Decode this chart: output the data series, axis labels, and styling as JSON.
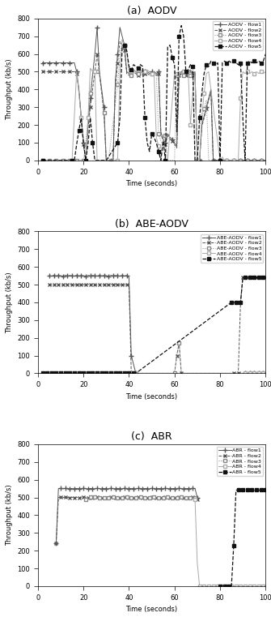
{
  "title_a": "(a)  AODV",
  "title_b": "(b)  ABE-AODV",
  "title_c": "(c)  ABR",
  "ylabel": "Throughput (kb/s)",
  "xlabel": "Time (seconds)",
  "ylim": [
    0,
    800
  ],
  "xlim": [
    0,
    100
  ],
  "yticks": [
    0,
    100,
    200,
    300,
    400,
    500,
    600,
    700,
    800
  ],
  "xticks": [
    0,
    20,
    40,
    60,
    80,
    100
  ],
  "legend_a": [
    "AODV - flow1",
    "AODV - flow2",
    "AODV - flow3",
    "AODV - flow4",
    "AODV - flow5"
  ],
  "legend_b": [
    "ABE-AODV - flow1",
    "ABE-AODV - flow2",
    "ABE-AODV - flow3",
    "ABE-AODV - flow4",
    "ABE-AODV - flow5"
  ],
  "legend_c": [
    "ABR - flow1",
    "ABR - flow2",
    "ABR - flow3",
    "ABR - flow4",
    "ABR - flow5"
  ],
  "aodv_flow1_t": [
    2,
    3,
    4,
    5,
    6,
    7,
    8,
    9,
    10,
    11,
    12,
    13,
    14,
    15,
    16,
    17,
    18,
    19,
    20,
    21,
    22,
    23,
    24,
    25,
    26,
    27,
    28,
    29,
    30,
    31,
    32,
    33,
    34,
    35,
    36,
    37,
    38,
    39,
    40,
    41,
    42,
    43,
    44,
    45,
    46,
    47,
    48,
    49,
    50,
    51,
    52,
    53,
    54,
    55,
    56,
    57,
    58,
    59,
    60,
    61,
    62,
    63,
    64,
    65,
    66,
    67,
    68,
    69,
    70,
    71,
    72,
    73,
    74,
    75,
    76,
    77,
    78,
    79,
    80,
    81,
    82,
    83,
    84,
    85,
    86,
    87,
    88,
    89,
    90,
    91,
    92,
    93,
    94,
    95,
    96,
    97,
    98,
    99,
    100
  ],
  "aodv_flow1_v": [
    550,
    550,
    550,
    550,
    550,
    550,
    550,
    550,
    550,
    550,
    550,
    550,
    550,
    550,
    550,
    500,
    400,
    250,
    100,
    0,
    200,
    350,
    480,
    600,
    750,
    500,
    400,
    300,
    0,
    0,
    0,
    0,
    450,
    600,
    750,
    700,
    650,
    500,
    490,
    500,
    510,
    500,
    490,
    500,
    510,
    500,
    490,
    500,
    500,
    500,
    490,
    500,
    160,
    120,
    100,
    150,
    130,
    120,
    100,
    80,
    490,
    500,
    510,
    490,
    500,
    510,
    490,
    500,
    0,
    0,
    200,
    250,
    300,
    350,
    400,
    0,
    0,
    0,
    0,
    0,
    0,
    0,
    0,
    0,
    0,
    0,
    0,
    0,
    0,
    0,
    0,
    0,
    0,
    0,
    0,
    0,
    0,
    0,
    0
  ],
  "aodv_flow2_t": [
    2,
    3,
    4,
    5,
    6,
    7,
    8,
    9,
    10,
    11,
    12,
    13,
    14,
    15,
    16,
    17,
    18,
    19,
    20,
    21,
    22,
    23,
    24,
    25,
    26,
    27,
    28,
    29,
    30,
    31,
    32,
    33,
    34,
    35,
    36,
    37,
    38,
    39,
    40,
    41,
    42,
    43,
    44,
    45,
    46,
    47,
    48,
    49,
    50,
    51,
    52,
    53,
    54,
    55,
    56,
    57,
    58,
    59,
    60,
    61,
    62,
    63,
    64,
    65,
    66,
    67,
    68,
    69,
    70,
    71,
    72,
    73,
    74,
    75,
    76,
    77,
    78,
    79,
    80,
    81,
    82,
    83,
    84,
    85,
    86,
    87,
    88,
    89,
    90,
    91,
    92,
    93,
    94,
    95,
    96,
    97,
    98,
    99,
    100
  ],
  "aodv_flow2_v": [
    500,
    500,
    500,
    500,
    500,
    500,
    500,
    500,
    500,
    500,
    500,
    500,
    500,
    500,
    500,
    490,
    390,
    240,
    90,
    0,
    180,
    300,
    400,
    500,
    600,
    490,
    380,
    270,
    0,
    0,
    0,
    0,
    410,
    550,
    670,
    650,
    620,
    490,
    480,
    490,
    500,
    490,
    480,
    490,
    500,
    490,
    480,
    490,
    490,
    490,
    480,
    490,
    150,
    110,
    90,
    140,
    120,
    110,
    90,
    70,
    480,
    490,
    500,
    480,
    490,
    500,
    480,
    490,
    0,
    0,
    190,
    240,
    290,
    340,
    390,
    0,
    0,
    0,
    0,
    0,
    0,
    0,
    0,
    0,
    0,
    0,
    0,
    0,
    0,
    0,
    0,
    0,
    0,
    0,
    0,
    0,
    0,
    0,
    0
  ],
  "aodv_flow3_t": [
    2,
    3,
    4,
    5,
    6,
    7,
    8,
    9,
    10,
    11,
    12,
    13,
    14,
    15,
    16,
    17,
    18,
    19,
    20,
    21,
    22,
    23,
    24,
    25,
    26,
    27,
    28,
    29,
    30,
    31,
    35,
    36,
    37,
    38,
    39,
    40,
    41,
    42,
    43,
    44,
    45,
    46,
    47,
    48,
    49,
    50,
    51,
    52,
    53,
    54,
    55,
    56,
    57,
    60,
    61,
    62,
    63,
    64,
    65,
    66,
    67,
    68,
    69,
    70,
    71,
    72,
    73,
    74,
    75,
    80,
    81,
    82,
    83,
    84,
    85,
    86,
    87,
    88,
    89,
    90,
    91,
    92,
    93,
    94,
    95,
    96,
    97,
    98,
    99,
    100
  ],
  "aodv_flow3_v": [
    0,
    0,
    0,
    0,
    0,
    0,
    0,
    0,
    0,
    0,
    0,
    0,
    0,
    0,
    0,
    0,
    0,
    0,
    0,
    100,
    230,
    380,
    490,
    500,
    500,
    490,
    380,
    270,
    0,
    0,
    430,
    590,
    680,
    650,
    620,
    490,
    480,
    490,
    500,
    490,
    480,
    490,
    500,
    490,
    480,
    490,
    490,
    490,
    150,
    110,
    90,
    140,
    0,
    0,
    480,
    490,
    500,
    480,
    490,
    500,
    480,
    490,
    0,
    0,
    200,
    240,
    290,
    340,
    0,
    0,
    0,
    0,
    0,
    0,
    0,
    0,
    0,
    0,
    0,
    0,
    0,
    0,
    0,
    0,
    0,
    0,
    0,
    0,
    0,
    0
  ],
  "aodv_flow4_t": [
    2,
    5,
    10,
    15,
    17,
    18,
    19,
    20,
    21,
    22,
    23,
    24,
    25,
    26,
    30,
    35,
    36,
    37,
    38,
    39,
    40,
    41,
    42,
    43,
    44,
    45,
    46,
    47,
    48,
    49,
    50,
    51,
    52,
    53,
    54,
    55,
    56,
    57,
    60,
    61,
    62,
    63,
    64,
    65,
    66,
    67,
    68,
    69,
    70,
    71,
    72,
    73,
    74,
    75,
    80,
    81,
    82,
    83,
    84,
    85,
    86,
    87,
    88,
    89,
    90,
    91,
    92,
    93,
    94,
    95,
    96,
    97,
    98,
    99,
    100
  ],
  "aodv_flow4_v": [
    0,
    0,
    0,
    0,
    500,
    380,
    240,
    110,
    0,
    240,
    520,
    500,
    500,
    0,
    0,
    0,
    500,
    680,
    650,
    620,
    510,
    500,
    510,
    500,
    510,
    500,
    510,
    500,
    510,
    500,
    490,
    500,
    130,
    80,
    0,
    120,
    0,
    0,
    500,
    490,
    500,
    490,
    500,
    490,
    500,
    200,
    380,
    490,
    0,
    0,
    250,
    380,
    490,
    500,
    0,
    20,
    0,
    0,
    0,
    0,
    0,
    0,
    0,
    350,
    500,
    490,
    500,
    490,
    500,
    490,
    500,
    490,
    500,
    490,
    500
  ],
  "aodv_flow5_t": [
    2,
    5,
    10,
    15,
    16,
    17,
    18,
    19,
    20,
    21,
    22,
    23,
    24,
    25,
    30,
    35,
    36,
    37,
    38,
    39,
    40,
    41,
    42,
    43,
    44,
    45,
    46,
    47,
    48,
    49,
    50,
    51,
    52,
    53,
    54,
    55,
    56,
    57,
    58,
    59,
    60,
    61,
    62,
    63,
    64,
    65,
    66,
    67,
    68,
    69,
    70,
    71,
    72,
    73,
    74,
    75,
    76,
    77,
    78,
    79,
    80,
    81,
    82,
    83,
    84,
    85,
    86,
    87,
    88,
    89,
    90,
    91,
    92,
    93,
    94,
    95,
    96,
    97,
    98,
    99,
    100
  ],
  "aodv_flow5_v": [
    0,
    0,
    0,
    0,
    0,
    90,
    170,
    240,
    100,
    0,
    90,
    240,
    100,
    0,
    0,
    100,
    240,
    640,
    650,
    620,
    530,
    510,
    540,
    530,
    520,
    540,
    530,
    240,
    100,
    50,
    150,
    130,
    100,
    50,
    0,
    110,
    0,
    640,
    650,
    580,
    540,
    160,
    700,
    760,
    700,
    500,
    510,
    540,
    530,
    0,
    0,
    240,
    380,
    490,
    540,
    530,
    560,
    550,
    540,
    550,
    0,
    550,
    560,
    550,
    560,
    550,
    560,
    550,
    540,
    550,
    240,
    0,
    550,
    560,
    550,
    560,
    550,
    560,
    550,
    560,
    600
  ],
  "abe_flow1_t": [
    5,
    6,
    7,
    8,
    9,
    10,
    11,
    12,
    13,
    14,
    15,
    16,
    17,
    18,
    19,
    20,
    21,
    22,
    23,
    24,
    25,
    26,
    27,
    28,
    29,
    30,
    31,
    32,
    33,
    34,
    35,
    36,
    37,
    38,
    39,
    40,
    41,
    42,
    43,
    90,
    91,
    92,
    93,
    94,
    95,
    96,
    97,
    98,
    99,
    100
  ],
  "abe_flow1_v": [
    550,
    548,
    552,
    549,
    551,
    550,
    548,
    552,
    549,
    551,
    550,
    548,
    552,
    549,
    551,
    550,
    548,
    552,
    549,
    551,
    550,
    548,
    552,
    549,
    551,
    550,
    548,
    552,
    549,
    551,
    550,
    548,
    552,
    549,
    551,
    540,
    100,
    50,
    0,
    0,
    0,
    0,
    0,
    0,
    0,
    0,
    0,
    0,
    0,
    0
  ],
  "abe_flow2_t": [
    5,
    6,
    7,
    8,
    9,
    10,
    11,
    12,
    13,
    14,
    15,
    16,
    17,
    18,
    19,
    20,
    21,
    22,
    23,
    24,
    25,
    26,
    27,
    28,
    29,
    30,
    31,
    32,
    33,
    34,
    35,
    36,
    37,
    38,
    39,
    40,
    41,
    60,
    61,
    62,
    63,
    85,
    86,
    87,
    88,
    89,
    90,
    91,
    92,
    93,
    94,
    95,
    96,
    97,
    98,
    99,
    100
  ],
  "abe_flow2_v": [
    500,
    498,
    502,
    499,
    501,
    500,
    498,
    502,
    499,
    501,
    500,
    498,
    502,
    499,
    501,
    500,
    498,
    502,
    499,
    501,
    500,
    498,
    502,
    499,
    501,
    500,
    498,
    502,
    499,
    501,
    500,
    498,
    502,
    499,
    501,
    500,
    0,
    0,
    100,
    170,
    0,
    0,
    0,
    0,
    0,
    400,
    540,
    540,
    540,
    540,
    540,
    540,
    540,
    540,
    540,
    540,
    540
  ],
  "abe_flow3_t": [
    60,
    61,
    62,
    63
  ],
  "abe_flow3_v": [
    0,
    100,
    170,
    0
  ],
  "abe_flow4_t": [
    5,
    6,
    7,
    8,
    9,
    10,
    11,
    12,
    13,
    14,
    15,
    16,
    17,
    18,
    19,
    20,
    21,
    22,
    23,
    24,
    25,
    26,
    27,
    28,
    29,
    30,
    31,
    32,
    33,
    34,
    35,
    36,
    37,
    38,
    39,
    40,
    41,
    42,
    43,
    90,
    91,
    92,
    93,
    94,
    95,
    96,
    97,
    98,
    99,
    100
  ],
  "abe_flow4_v": [
    0,
    0,
    0,
    0,
    0,
    0,
    0,
    0,
    0,
    0,
    0,
    0,
    0,
    0,
    0,
    0,
    0,
    0,
    0,
    0,
    0,
    0,
    0,
    0,
    0,
    0,
    0,
    0,
    0,
    0,
    0,
    0,
    0,
    0,
    0,
    0,
    0,
    0,
    0,
    0,
    0,
    0,
    0,
    0,
    0,
    0,
    0,
    0,
    0,
    0
  ],
  "abe_flow5_t": [
    2,
    3,
    4,
    5,
    6,
    7,
    8,
    9,
    10,
    11,
    12,
    13,
    14,
    15,
    16,
    17,
    18,
    19,
    20,
    21,
    22,
    23,
    24,
    25,
    26,
    27,
    28,
    29,
    30,
    31,
    32,
    33,
    34,
    35,
    36,
    37,
    38,
    39,
    40,
    41,
    42,
    43,
    85,
    86,
    87,
    88,
    89,
    90,
    91,
    92,
    93,
    94,
    95,
    96,
    97,
    98,
    99,
    100
  ],
  "abe_flow5_v": [
    0,
    0,
    0,
    0,
    0,
    0,
    0,
    0,
    0,
    0,
    0,
    0,
    0,
    0,
    0,
    0,
    0,
    0,
    0,
    0,
    0,
    0,
    0,
    0,
    0,
    0,
    0,
    0,
    0,
    0,
    0,
    0,
    0,
    0,
    0,
    0,
    0,
    0,
    0,
    0,
    0,
    0,
    400,
    400,
    400,
    400,
    400,
    540,
    540,
    540,
    540,
    540,
    540,
    540,
    540,
    540,
    540,
    540
  ],
  "abr_flow1_t": [
    8,
    9,
    10,
    11,
    12,
    13,
    14,
    15,
    16,
    17,
    18,
    19,
    20,
    21,
    22,
    23,
    24,
    25,
    26,
    27,
    28,
    29,
    30,
    31,
    32,
    33,
    34,
    35,
    36,
    37,
    38,
    39,
    40,
    41,
    42,
    43,
    44,
    45,
    46,
    47,
    48,
    49,
    50,
    51,
    52,
    53,
    54,
    55,
    56,
    57,
    58,
    59,
    60,
    61,
    62,
    63,
    64,
    65,
    66,
    67,
    68,
    69,
    70
  ],
  "abr_flow1_v": [
    240,
    550,
    551,
    549,
    551,
    550,
    549,
    551,
    549,
    551,
    550,
    549,
    551,
    550,
    549,
    551,
    550,
    549,
    551,
    550,
    549,
    551,
    550,
    549,
    551,
    550,
    549,
    551,
    550,
    549,
    551,
    550,
    549,
    551,
    550,
    549,
    551,
    550,
    549,
    551,
    550,
    549,
    551,
    550,
    549,
    551,
    550,
    549,
    551,
    550,
    549,
    551,
    550,
    549,
    551,
    550,
    549,
    551,
    550,
    549,
    551,
    550,
    500
  ],
  "abr_flow2_t": [
    8,
    9,
    10,
    11,
    12,
    13,
    14,
    15,
    16,
    17,
    18,
    19,
    20,
    21,
    22,
    23,
    24,
    25,
    26,
    27,
    28,
    29,
    30,
    31,
    32,
    33,
    34,
    35,
    36,
    37,
    38,
    39,
    40,
    41,
    42,
    43,
    44,
    45,
    46,
    47,
    48,
    49,
    50,
    51,
    52,
    53,
    54,
    55,
    56,
    57,
    58,
    59,
    60,
    61,
    62,
    63,
    64,
    65,
    66,
    67,
    68,
    69,
    70
  ],
  "abr_flow2_v": [
    240,
    500,
    501,
    499,
    501,
    500,
    499,
    501,
    499,
    501,
    500,
    499,
    501,
    500,
    499,
    501,
    500,
    499,
    501,
    500,
    499,
    501,
    500,
    499,
    501,
    500,
    499,
    501,
    500,
    499,
    501,
    500,
    499,
    501,
    500,
    499,
    501,
    500,
    499,
    501,
    500,
    499,
    501,
    500,
    499,
    501,
    500,
    499,
    501,
    500,
    499,
    501,
    500,
    499,
    501,
    500,
    499,
    501,
    500,
    499,
    501,
    500,
    490
  ],
  "abr_flow3_t": [
    21,
    22,
    23,
    24,
    25,
    26,
    27,
    28,
    29,
    30,
    31,
    32,
    33,
    34,
    35,
    36,
    37,
    38,
    39,
    40,
    41,
    42,
    43,
    44,
    45,
    46,
    47,
    48,
    49,
    50,
    51,
    52,
    53,
    54,
    55,
    56,
    57,
    58,
    59,
    60,
    61,
    62,
    63,
    64,
    65,
    66,
    67,
    68,
    69,
    70
  ],
  "abr_flow3_v": [
    490,
    500,
    501,
    499,
    501,
    500,
    499,
    501,
    499,
    501,
    500,
    499,
    501,
    500,
    499,
    501,
    500,
    499,
    501,
    500,
    499,
    501,
    500,
    499,
    501,
    500,
    499,
    501,
    500,
    499,
    501,
    500,
    499,
    501,
    500,
    499,
    501,
    500,
    499,
    501,
    500,
    499,
    501,
    500,
    499,
    501,
    500,
    499,
    500,
    490
  ],
  "abr_flow4_t": [
    69,
    70,
    71,
    72,
    73,
    74,
    75,
    76,
    77,
    78,
    79,
    80,
    81,
    82,
    83,
    84,
    85,
    86,
    87,
    88,
    89,
    90,
    91,
    92,
    93,
    94,
    95,
    96,
    97,
    98,
    99,
    100
  ],
  "abr_flow4_v": [
    490,
    130,
    0,
    0,
    0,
    0,
    0,
    0,
    0,
    0,
    0,
    0,
    0,
    0,
    0,
    0,
    0,
    0,
    0,
    0,
    0,
    0,
    0,
    0,
    0,
    0,
    0,
    0,
    0,
    0,
    0,
    0
  ],
  "abr_flow5_t": [
    80,
    81,
    82,
    83,
    84,
    85,
    86,
    87,
    88,
    89,
    90,
    91,
    92,
    93,
    94,
    95,
    96,
    97,
    98,
    99,
    100
  ],
  "abr_flow5_v": [
    0,
    0,
    0,
    0,
    0,
    0,
    230,
    540,
    545,
    540,
    545,
    540,
    545,
    540,
    545,
    540,
    545,
    540,
    545,
    540,
    545
  ]
}
